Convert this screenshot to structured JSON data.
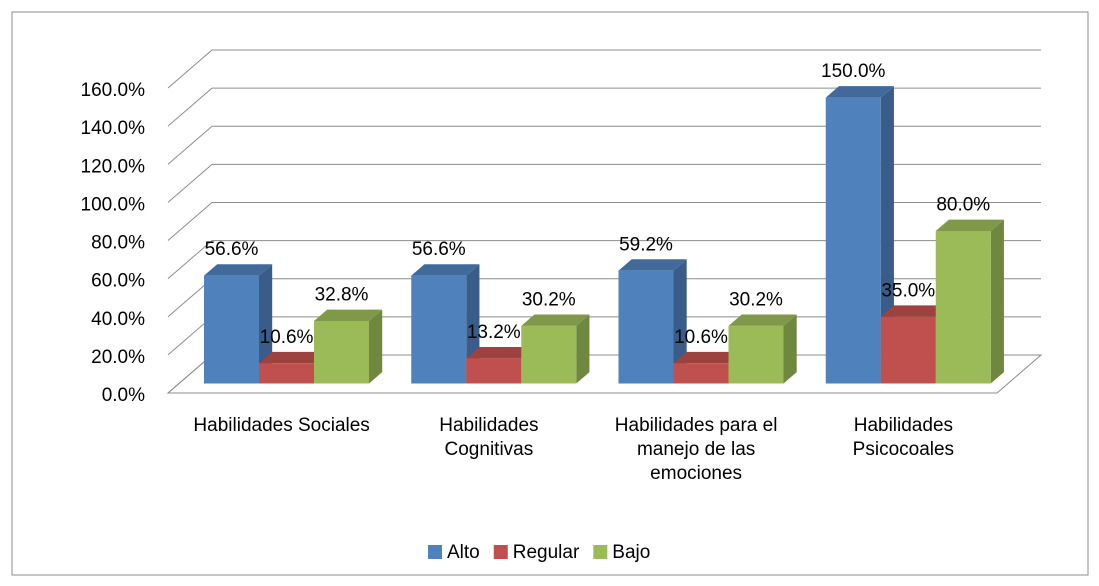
{
  "chart_data": {
    "type": "bar3d",
    "categories": [
      "Habilidades Sociales",
      "Habilidades Cognitivas",
      "Habilidades para el manejo de las emociones",
      "Habilidades Psicocoales"
    ],
    "series": [
      {
        "name": "Alto",
        "color": "#4f81bd",
        "values": [
          56.6,
          56.6,
          59.2,
          150.0
        ],
        "value_labels": [
          "56.6%",
          "56.6%",
          "59.2%",
          "150.0%"
        ]
      },
      {
        "name": "Regular",
        "color": "#c0504d",
        "values": [
          10.6,
          13.2,
          10.6,
          35.0
        ],
        "value_labels": [
          "10.6%",
          "13.2%",
          "10.6%",
          "35.0%"
        ]
      },
      {
        "name": "Bajo",
        "color": "#9bbb59",
        "values": [
          32.8,
          30.2,
          30.2,
          80.0
        ],
        "value_labels": [
          "32.8%",
          "30.2%",
          "30.2%",
          "80.0%"
        ]
      }
    ],
    "ylim": [
      0,
      160
    ],
    "yticks": [
      {
        "value": 0,
        "label": "0.0%"
      },
      {
        "value": 20,
        "label": "20.0%"
      },
      {
        "value": 40,
        "label": "40.0%"
      },
      {
        "value": 60,
        "label": "60.0%"
      },
      {
        "value": 80,
        "label": "80.0%"
      },
      {
        "value": 100,
        "label": "100.0%"
      },
      {
        "value": 120,
        "label": "120.0%"
      },
      {
        "value": 140,
        "label": "140.0%"
      },
      {
        "value": 160,
        "label": "160.0%"
      }
    ],
    "grid": true,
    "legend": "bottom"
  }
}
